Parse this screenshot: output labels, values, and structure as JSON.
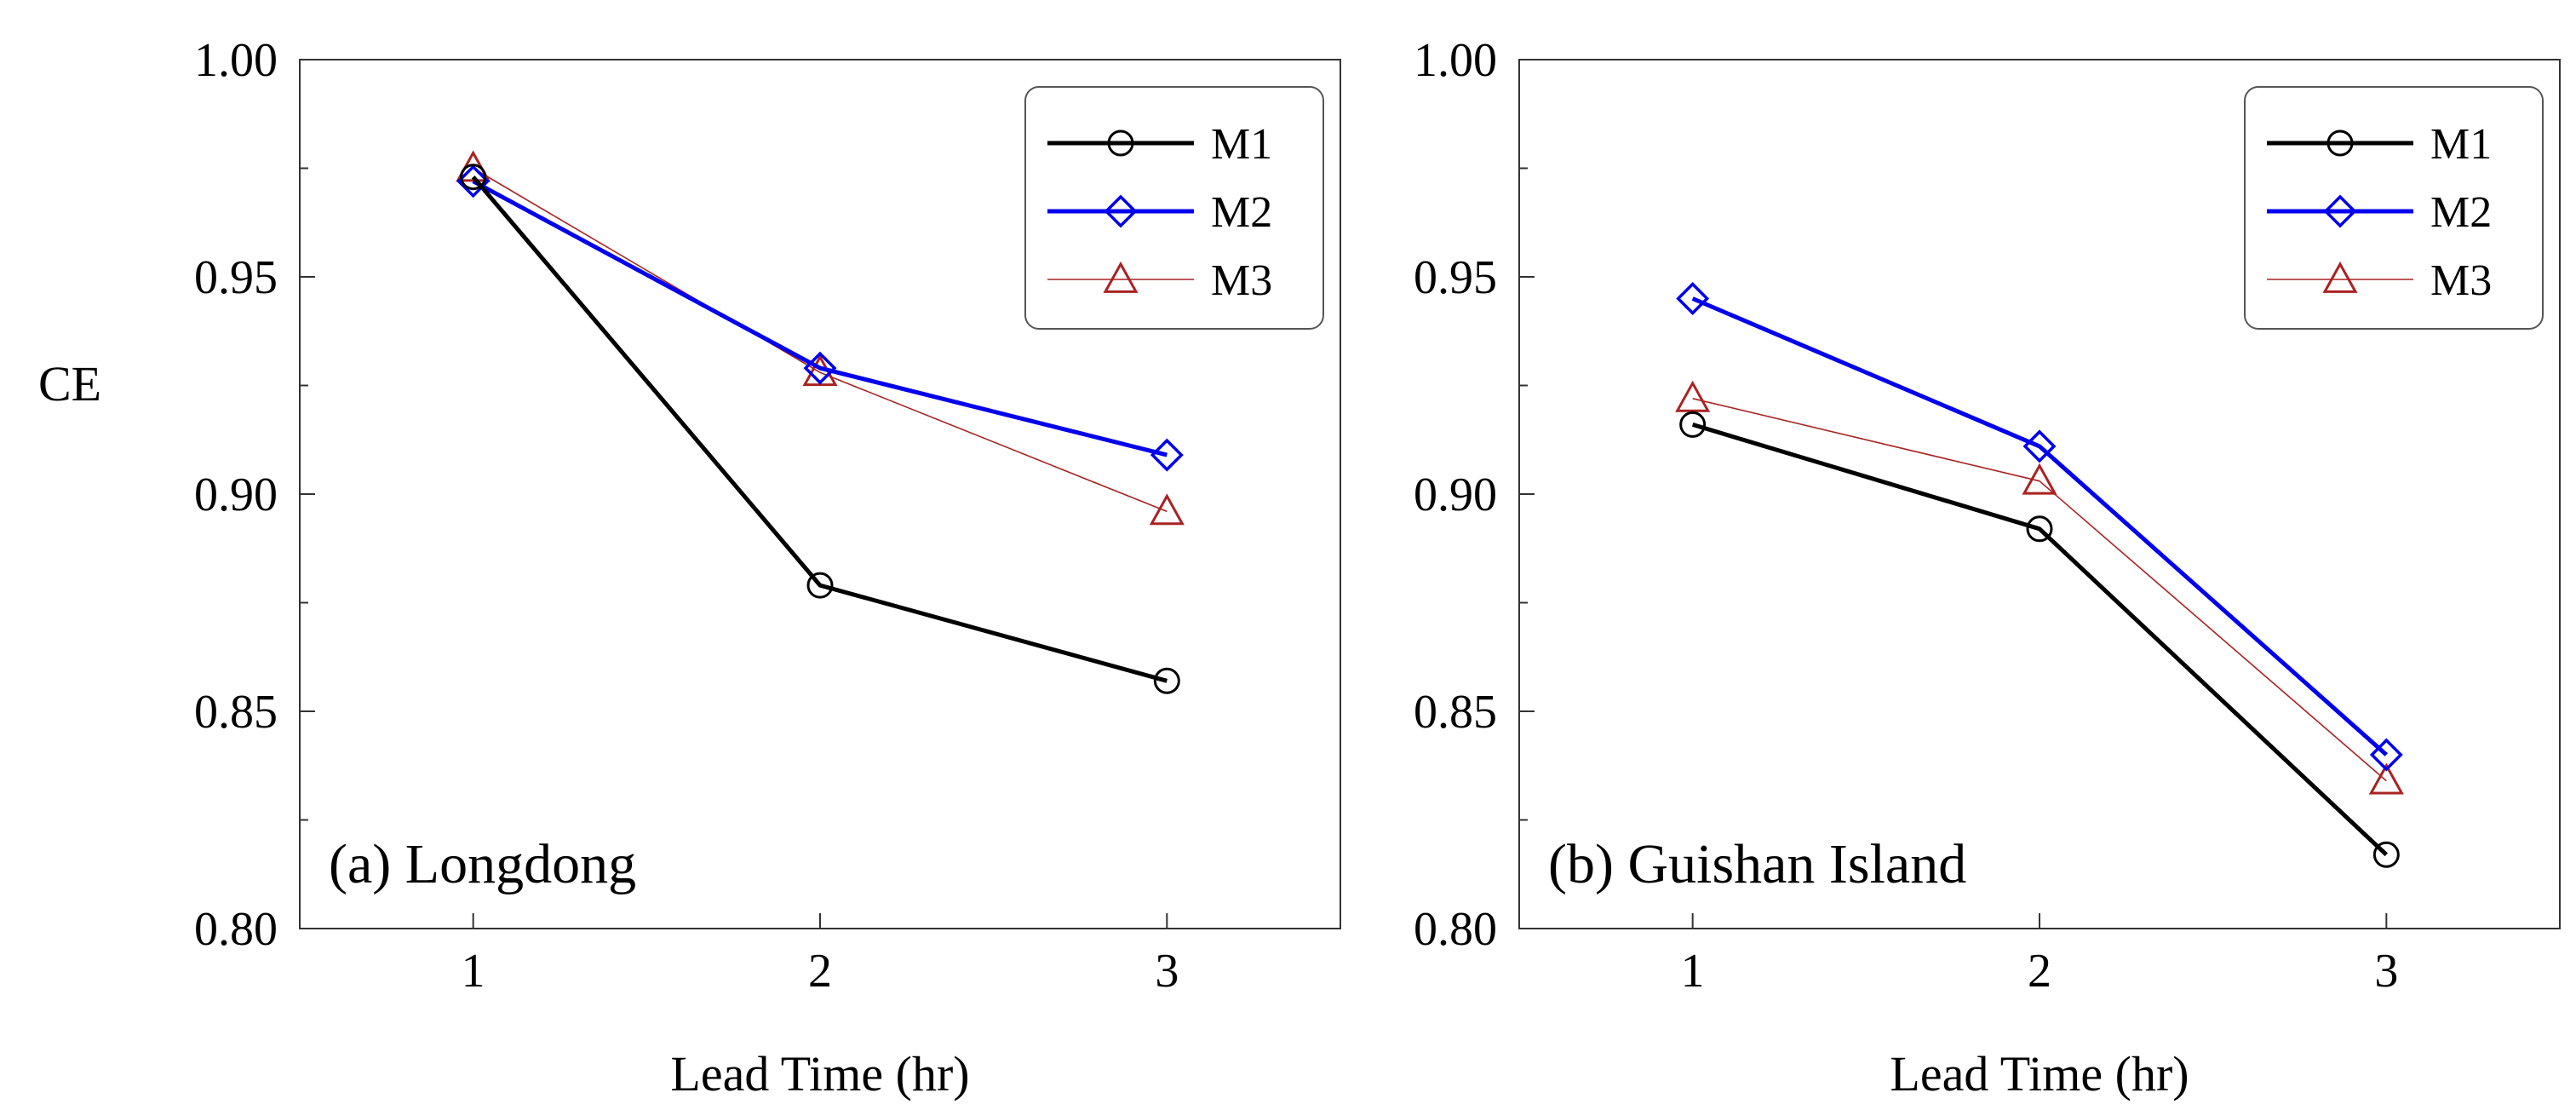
{
  "chart_data": [
    {
      "type": "line",
      "panel_label": "(a) Longdong",
      "xlabel": "Lead Time (hr)",
      "ylabel": "CE",
      "x": [
        1,
        2,
        3
      ],
      "x_tick_labels": [
        "1",
        "2",
        "3"
      ],
      "xlim": [
        0.5,
        3.5
      ],
      "ylim": [
        0.8,
        1.0
      ],
      "y_tick_labels": [
        "0.80",
        "0.85",
        "0.90",
        "0.95",
        "1.00"
      ],
      "legend_position": "top-right",
      "series": [
        {
          "name": "M1",
          "values": [
            0.973,
            0.879,
            0.857
          ],
          "color": "#000000",
          "marker": "circle"
        },
        {
          "name": "M2",
          "values": [
            0.972,
            0.929,
            0.909
          ],
          "color": "#0000ee",
          "marker": "diamond"
        },
        {
          "name": "M3",
          "values": [
            0.975,
            0.928,
            0.896
          ],
          "color": "#aa2222",
          "marker": "triangle"
        }
      ]
    },
    {
      "type": "line",
      "panel_label": "(b) Guishan Island",
      "xlabel": "Lead Time (hr)",
      "ylabel": "",
      "x": [
        1,
        2,
        3
      ],
      "x_tick_labels": [
        "1",
        "2",
        "3"
      ],
      "xlim": [
        0.5,
        3.5
      ],
      "ylim": [
        0.8,
        1.0
      ],
      "y_tick_labels": [
        "0.80",
        "0.85",
        "0.90",
        "0.95",
        "1.00"
      ],
      "legend_position": "top-right",
      "series": [
        {
          "name": "M1",
          "values": [
            0.916,
            0.892,
            0.817
          ],
          "color": "#000000",
          "marker": "circle"
        },
        {
          "name": "M2",
          "values": [
            0.945,
            0.911,
            0.84
          ],
          "color": "#0000ee",
          "marker": "diamond"
        },
        {
          "name": "M3",
          "values": [
            0.922,
            0.903,
            0.834
          ],
          "color": "#aa2222",
          "marker": "triangle"
        }
      ]
    }
  ]
}
